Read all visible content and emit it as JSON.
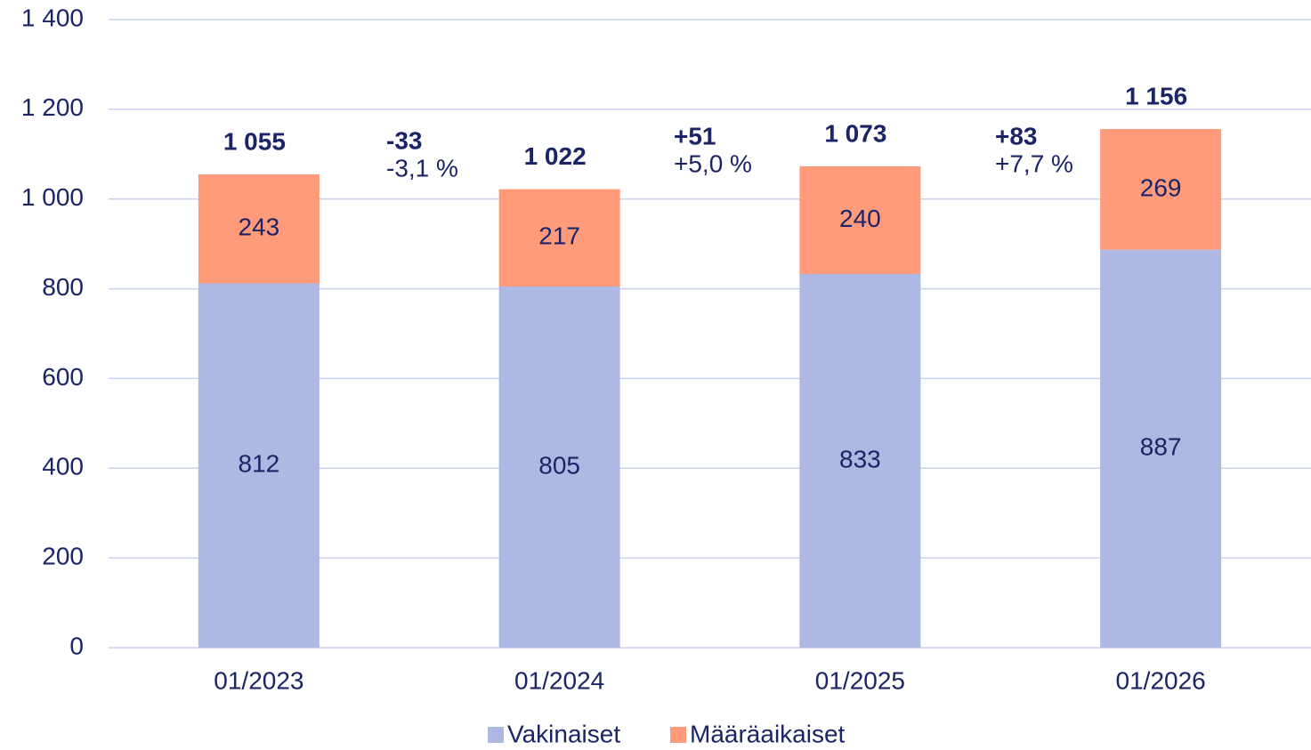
{
  "chart_data": {
    "type": "stacked_bar",
    "categories": [
      "01/2023",
      "01/2024",
      "01/2025",
      "01/2026"
    ],
    "series": [
      {
        "name": "Vakinaiset",
        "color": "#adb9e3",
        "values": [
          812,
          805,
          833,
          887
        ]
      },
      {
        "name": "Määräaikaiset",
        "color": "#ff9b7a",
        "values": [
          243,
          217,
          240,
          269
        ]
      }
    ],
    "totals": [
      1055,
      1022,
      1073,
      1156
    ],
    "total_labels": [
      "1 055",
      "1 022",
      "1 073",
      "1 156"
    ],
    "changes": [
      {
        "value": "-33",
        "percent": "-3,1 %"
      },
      {
        "value": "+51",
        "percent": "+5,0 %"
      },
      {
        "value": "+83",
        "percent": "+7,7 %"
      }
    ],
    "ylim": [
      0,
      1400
    ],
    "yticks": [
      0,
      200,
      400,
      600,
      800,
      {
        "value": 1000,
        "label": "1 000"
      },
      {
        "value": 1200,
        "label": "1 200"
      },
      {
        "value": 1400,
        "label": "1 400"
      }
    ],
    "grid": true,
    "legend": "bottom"
  }
}
